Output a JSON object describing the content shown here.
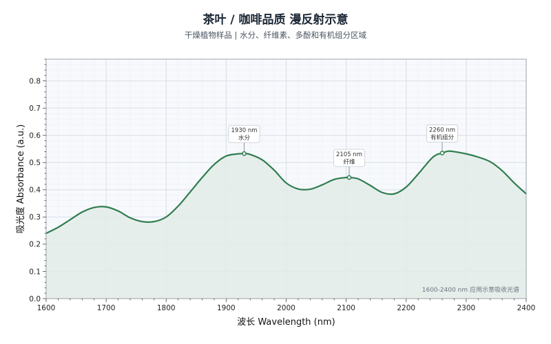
{
  "header": {
    "title": "茶叶 / 咖啡品质  漫反射示意",
    "subtitle": "干燥植物样品 | 水分、纤维素、多酚和有机组分区域"
  },
  "chart_data": {
    "type": "area",
    "xlabel": "波长 Wavelength (nm)",
    "ylabel": "吸光度 Absorbance (a.u.)",
    "xlim": [
      1600,
      2400
    ],
    "ylim": [
      0,
      0.88
    ],
    "x_ticks": [
      1600,
      1700,
      1800,
      1900,
      2000,
      2100,
      2200,
      2300,
      2400
    ],
    "y_ticks": [
      0.0,
      0.1,
      0.2,
      0.3,
      0.4,
      0.5,
      0.6,
      0.7,
      0.8
    ],
    "grid": true,
    "minor_grid": true,
    "line_color": "#2e7d4f",
    "fill_color": "#e3ece7",
    "series": [
      {
        "x": [
          1600,
          1620,
          1640,
          1660,
          1680,
          1700,
          1720,
          1740,
          1760,
          1780,
          1800,
          1820,
          1840,
          1860,
          1880,
          1900,
          1920,
          1930,
          1940,
          1960,
          1980,
          2000,
          2020,
          2040,
          2060,
          2080,
          2100,
          2105,
          2120,
          2140,
          2160,
          2180,
          2200,
          2220,
          2240,
          2250,
          2260,
          2270,
          2280,
          2300,
          2320,
          2340,
          2360,
          2380,
          2400
        ],
        "y": [
          0.24,
          0.262,
          0.29,
          0.318,
          0.335,
          0.337,
          0.322,
          0.297,
          0.283,
          0.283,
          0.3,
          0.34,
          0.392,
          0.445,
          0.493,
          0.524,
          0.532,
          0.533,
          0.53,
          0.51,
          0.472,
          0.425,
          0.403,
          0.402,
          0.418,
          0.438,
          0.445,
          0.445,
          0.44,
          0.416,
          0.39,
          0.385,
          0.41,
          0.458,
          0.51,
          0.528,
          0.535,
          0.542,
          0.54,
          0.532,
          0.52,
          0.503,
          0.47,
          0.425,
          0.385
        ]
      }
    ],
    "annotations": [
      {
        "x": 1930,
        "y": 0.533,
        "label_line1": "1930 nm",
        "label_line2": "水分"
      },
      {
        "x": 2105,
        "y": 0.445,
        "label_line1": "2105 nm",
        "label_line2": "纤维"
      },
      {
        "x": 2260,
        "y": 0.535,
        "label_line1": "2260 nm",
        "label_line2": "有机组分"
      }
    ],
    "note": "1600-2400 nm 应用示意吸收光谱"
  }
}
